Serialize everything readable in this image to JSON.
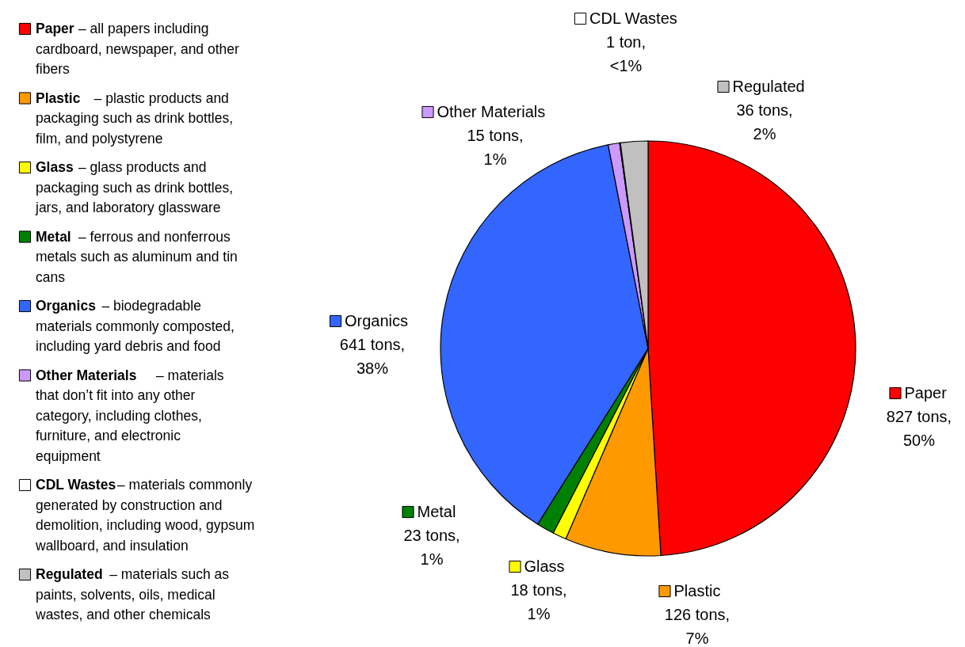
{
  "chart_data": {
    "type": "pie",
    "categories": [
      "Paper",
      "Plastic",
      "Glass",
      "Metal",
      "Organics",
      "Other Materials",
      "CDL Wastes",
      "Regulated"
    ],
    "values": [
      827,
      126,
      18,
      23,
      641,
      15,
      1,
      36
    ],
    "colors": [
      "#ff0000",
      "#ff9900",
      "#ffff00",
      "#008000",
      "#3366ff",
      "#cc99ff",
      "#ffffff",
      "#c0c0c0"
    ],
    "value_labels": [
      "827 tons, 50%",
      "126 tons, 7%",
      "18 tons, 1%",
      "23 tons, 1%",
      "641 tons, 38%",
      "15 tons, 1%",
      "1 ton, <1%",
      "36 tons, 2%"
    ],
    "annotations": [
      "– all papers including cardboard, newspaper, and other fibers",
      "– plastic products and packaging such as drink bottles, film, and polystyrene",
      "– glass products and packaging such as drink bottles, jars, and laboratory glassware",
      "– ferrous and nonferrous metals such as aluminum and tin cans",
      "– biodegradable materials commonly composted, including yard debris and food",
      "– materials that don’t fit into any other category, including clothes, furniture, and electronic equipment",
      "– materials commonly generated by construction and demolition, including wood, gypsum wallboard, and insulation",
      "– materials such as paints, solvents, oils, medical wastes, and other chemicals"
    ],
    "legend": "left"
  }
}
